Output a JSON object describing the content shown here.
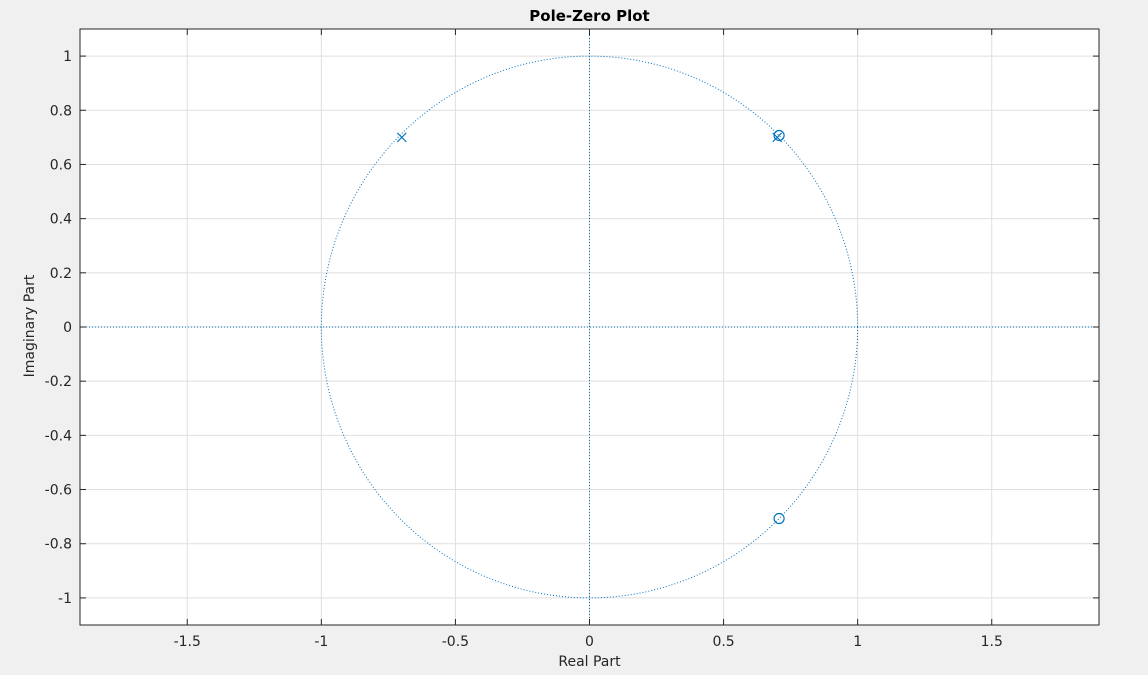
{
  "chart_data": {
    "type": "scatter",
    "title": "Pole-Zero Plot",
    "xlabel": "Real Part",
    "ylabel": "Imaginary Part",
    "xlim": [
      -1.9,
      1.9
    ],
    "ylim": [
      -1.1,
      1.1
    ],
    "grid": true,
    "xticks": [
      -1.5,
      -1,
      -0.5,
      0,
      0.5,
      1,
      1.5
    ],
    "xtick_labels": [
      "-1.5",
      "-1",
      "-0.5",
      "0",
      "0.5",
      "1",
      "1.5"
    ],
    "yticks": [
      1,
      0.8,
      0.6,
      0.4,
      0.2,
      0,
      -0.2,
      -0.4,
      -0.6,
      -0.8,
      -1
    ],
    "ytick_labels": [
      "1",
      "0.8",
      "0.6",
      "0.4",
      "0.2",
      "0",
      "-0.2",
      "-0.4",
      "-0.6",
      "-0.8",
      "-1"
    ],
    "unit_circle": true,
    "series": [
      {
        "name": "zeros",
        "marker": "o",
        "x": [
          0.707,
          0.707
        ],
        "y": [
          0.707,
          -0.707
        ]
      },
      {
        "name": "poles",
        "marker": "x",
        "x": [
          -0.7,
          0.7
        ],
        "y": [
          0.7,
          0.7
        ]
      }
    ],
    "color": "#0072BD"
  }
}
